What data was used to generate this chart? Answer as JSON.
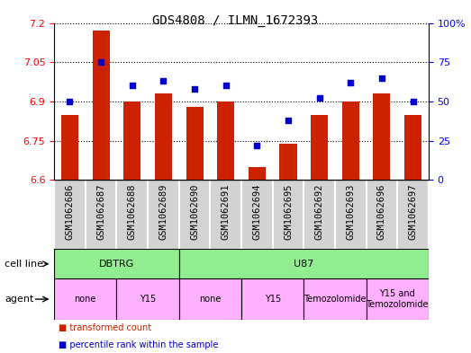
{
  "title": "GDS4808 / ILMN_1672393",
  "samples": [
    "GSM1062686",
    "GSM1062687",
    "GSM1062688",
    "GSM1062689",
    "GSM1062690",
    "GSM1062691",
    "GSM1062694",
    "GSM1062695",
    "GSM1062692",
    "GSM1062693",
    "GSM1062696",
    "GSM1062697"
  ],
  "transformed_count": [
    6.85,
    7.17,
    6.9,
    6.93,
    6.88,
    6.9,
    6.65,
    6.74,
    6.85,
    6.9,
    6.93,
    6.85
  ],
  "percentile_rank": [
    50,
    75,
    60,
    63,
    58,
    60,
    22,
    38,
    52,
    62,
    65,
    50
  ],
  "ylim_left": [
    6.6,
    7.2
  ],
  "ylim_right": [
    0,
    100
  ],
  "yticks_left": [
    6.6,
    6.75,
    6.9,
    7.05,
    7.2
  ],
  "yticks_right": [
    0,
    25,
    50,
    75,
    100
  ],
  "bar_color": "#cc2200",
  "dot_color": "#0000cc",
  "background_color": "#ffffff",
  "xticklabel_bg": "#d3d3d3",
  "cell_line_groups": [
    {
      "label": "DBTRG",
      "start": 0,
      "end": 4,
      "color": "#90ee90"
    },
    {
      "label": "U87",
      "start": 4,
      "end": 12,
      "color": "#90ee90"
    }
  ],
  "agent_groups": [
    {
      "label": "none",
      "start": 0,
      "end": 2,
      "color": "#ffb0ff"
    },
    {
      "label": "Y15",
      "start": 2,
      "end": 4,
      "color": "#ffb0ff"
    },
    {
      "label": "none",
      "start": 4,
      "end": 6,
      "color": "#ffb0ff"
    },
    {
      "label": "Y15",
      "start": 6,
      "end": 8,
      "color": "#ffb0ff"
    },
    {
      "label": "Temozolomide",
      "start": 8,
      "end": 10,
      "color": "#ffb0ff"
    },
    {
      "label": "Y15 and\nTemozolomide",
      "start": 10,
      "end": 12,
      "color": "#ffb0ff"
    }
  ],
  "legend_bar_label": "transformed count",
  "legend_dot_label": "percentile rank within the sample",
  "cell_line_label": "cell line",
  "agent_label": "agent",
  "title_fontsize": 10,
  "tick_fontsize": 7.5,
  "label_fontsize": 8
}
